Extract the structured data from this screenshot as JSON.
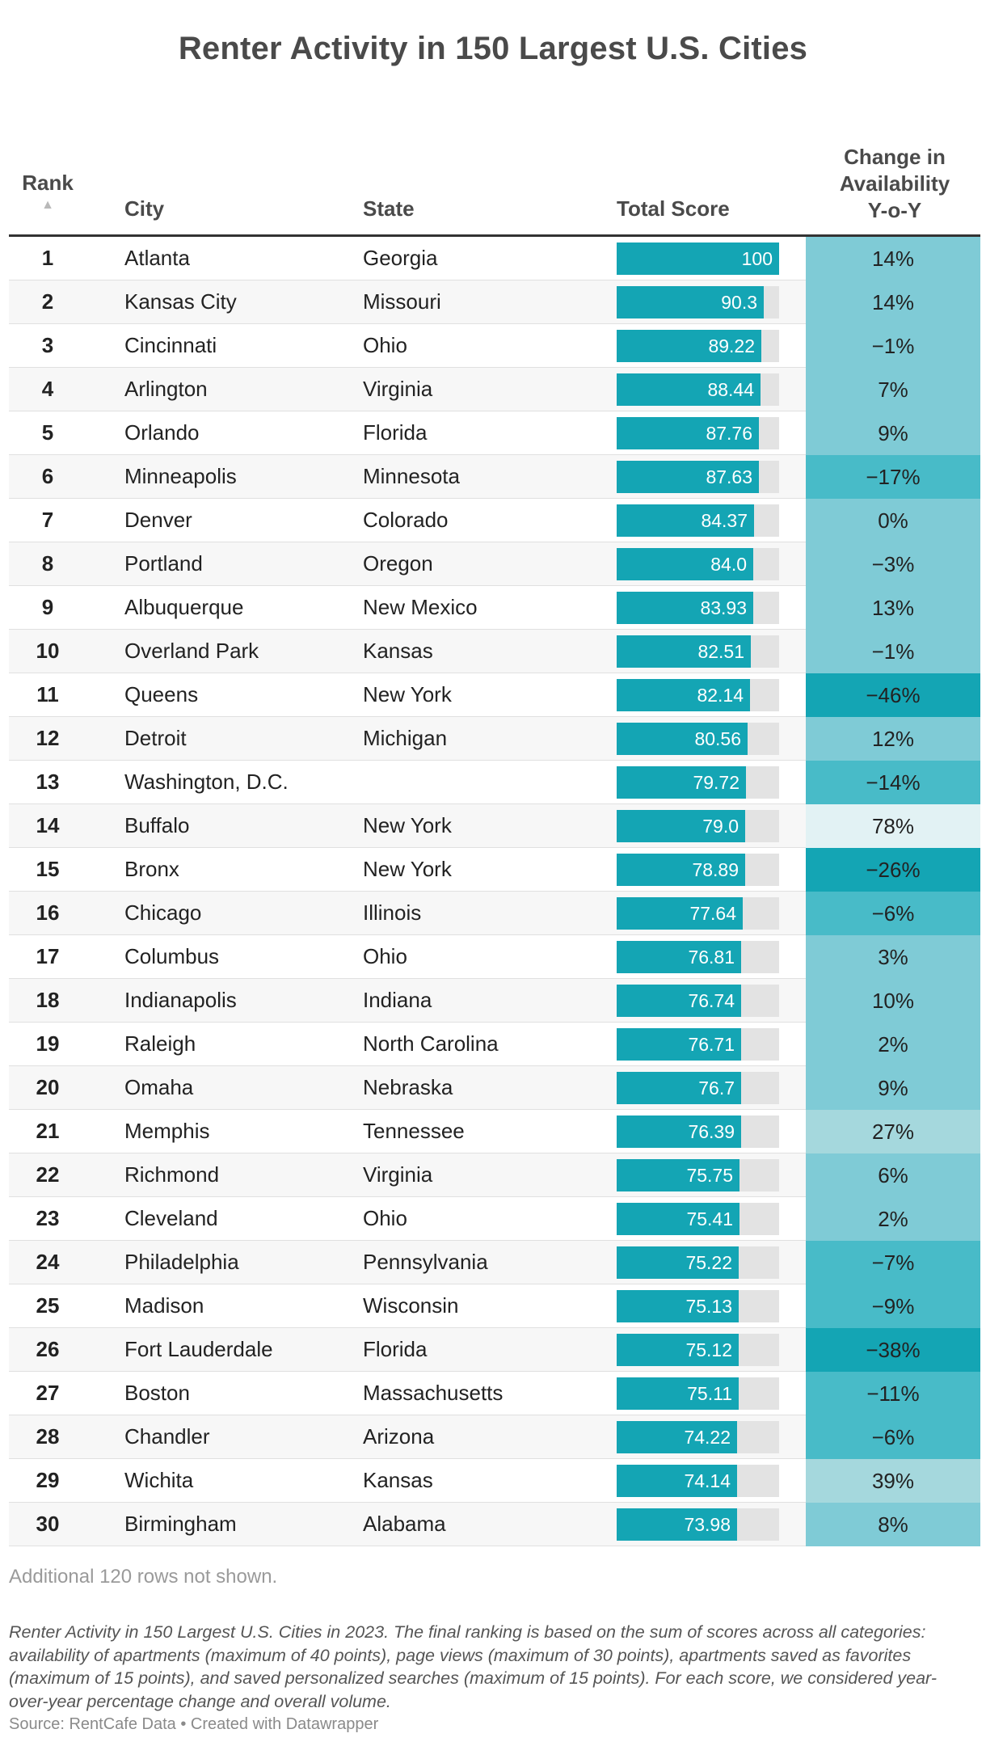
{
  "title": "Renter Activity in 150 Largest U.S. Cities",
  "headers": {
    "rank": "Rank",
    "sort_icon": "▲",
    "city": "City",
    "state": "State",
    "score": "Total Score",
    "change": "Change in\nAvailability\nY-o-Y"
  },
  "chart_data": {
    "type": "table",
    "title": "Renter Activity in 150 Largest U.S. Cities",
    "columns": [
      "Rank",
      "City",
      "State",
      "Total Score",
      "Change in Availability Y-o-Y"
    ],
    "score_range": [
      0,
      100
    ],
    "rows": [
      {
        "rank": "1",
        "city": "Atlanta",
        "state": "Georgia",
        "score": 100,
        "score_label": "100",
        "change": 14,
        "change_label": "14%"
      },
      {
        "rank": "2",
        "city": "Kansas City",
        "state": "Missouri",
        "score": 90.3,
        "score_label": "90.3",
        "change": 14,
        "change_label": "14%"
      },
      {
        "rank": "3",
        "city": "Cincinnati",
        "state": "Ohio",
        "score": 89.22,
        "score_label": "89.22",
        "change": -1,
        "change_label": "−1%"
      },
      {
        "rank": "4",
        "city": "Arlington",
        "state": "Virginia",
        "score": 88.44,
        "score_label": "88.44",
        "change": 7,
        "change_label": "7%"
      },
      {
        "rank": "5",
        "city": "Orlando",
        "state": "Florida",
        "score": 87.76,
        "score_label": "87.76",
        "change": 9,
        "change_label": "9%"
      },
      {
        "rank": "6",
        "city": "Minneapolis",
        "state": "Minnesota",
        "score": 87.63,
        "score_label": "87.63",
        "change": -17,
        "change_label": "−17%"
      },
      {
        "rank": "7",
        "city": "Denver",
        "state": "Colorado",
        "score": 84.37,
        "score_label": "84.37",
        "change": 0,
        "change_label": "0%"
      },
      {
        "rank": "8",
        "city": "Portland",
        "state": "Oregon",
        "score": 84.0,
        "score_label": "84.0",
        "change": -3,
        "change_label": "−3%"
      },
      {
        "rank": "9",
        "city": "Albuquerque",
        "state": "New Mexico",
        "score": 83.93,
        "score_label": "83.93",
        "change": 13,
        "change_label": "13%"
      },
      {
        "rank": "10",
        "city": "Overland Park",
        "state": "Kansas",
        "score": 82.51,
        "score_label": "82.51",
        "change": -1,
        "change_label": "−1%"
      },
      {
        "rank": "11",
        "city": "Queens",
        "state": "New York",
        "score": 82.14,
        "score_label": "82.14",
        "change": -46,
        "change_label": "−46%"
      },
      {
        "rank": "12",
        "city": "Detroit",
        "state": "Michigan",
        "score": 80.56,
        "score_label": "80.56",
        "change": 12,
        "change_label": "12%"
      },
      {
        "rank": "13",
        "city": "Washington, D.C.",
        "state": "",
        "score": 79.72,
        "score_label": "79.72",
        "change": -14,
        "change_label": "−14%"
      },
      {
        "rank": "14",
        "city": "Buffalo",
        "state": "New York",
        "score": 79.0,
        "score_label": "79.0",
        "change": 78,
        "change_label": "78%"
      },
      {
        "rank": "15",
        "city": "Bronx",
        "state": "New York",
        "score": 78.89,
        "score_label": "78.89",
        "change": -26,
        "change_label": "−26%"
      },
      {
        "rank": "16",
        "city": "Chicago",
        "state": "Illinois",
        "score": 77.64,
        "score_label": "77.64",
        "change": -6,
        "change_label": "−6%"
      },
      {
        "rank": "17",
        "city": "Columbus",
        "state": "Ohio",
        "score": 76.81,
        "score_label": "76.81",
        "change": 3,
        "change_label": "3%"
      },
      {
        "rank": "18",
        "city": "Indianapolis",
        "state": "Indiana",
        "score": 76.74,
        "score_label": "76.74",
        "change": 10,
        "change_label": "10%"
      },
      {
        "rank": "19",
        "city": "Raleigh",
        "state": "North Carolina",
        "score": 76.71,
        "score_label": "76.71",
        "change": 2,
        "change_label": "2%"
      },
      {
        "rank": "20",
        "city": "Omaha",
        "state": "Nebraska",
        "score": 76.7,
        "score_label": "76.7",
        "change": 9,
        "change_label": "9%"
      },
      {
        "rank": "21",
        "city": "Memphis",
        "state": "Tennessee",
        "score": 76.39,
        "score_label": "76.39",
        "change": 27,
        "change_label": "27%"
      },
      {
        "rank": "22",
        "city": "Richmond",
        "state": "Virginia",
        "score": 75.75,
        "score_label": "75.75",
        "change": 6,
        "change_label": "6%"
      },
      {
        "rank": "23",
        "city": "Cleveland",
        "state": "Ohio",
        "score": 75.41,
        "score_label": "75.41",
        "change": 2,
        "change_label": "2%"
      },
      {
        "rank": "24",
        "city": "Philadelphia",
        "state": "Pennsylvania",
        "score": 75.22,
        "score_label": "75.22",
        "change": -7,
        "change_label": "−7%"
      },
      {
        "rank": "25",
        "city": "Madison",
        "state": "Wisconsin",
        "score": 75.13,
        "score_label": "75.13",
        "change": -9,
        "change_label": "−9%"
      },
      {
        "rank": "26",
        "city": "Fort Lauderdale",
        "state": "Florida",
        "score": 75.12,
        "score_label": "75.12",
        "change": -38,
        "change_label": "−38%"
      },
      {
        "rank": "27",
        "city": "Boston",
        "state": "Massachusetts",
        "score": 75.11,
        "score_label": "75.11",
        "change": -11,
        "change_label": "−11%"
      },
      {
        "rank": "28",
        "city": "Chandler",
        "state": "Arizona",
        "score": 74.22,
        "score_label": "74.22",
        "change": -6,
        "change_label": "−6%"
      },
      {
        "rank": "29",
        "city": "Wichita",
        "state": "Kansas",
        "score": 74.14,
        "score_label": "74.14",
        "change": 39,
        "change_label": "39%"
      },
      {
        "rank": "30",
        "city": "Birmingham",
        "state": "Alabama",
        "score": 73.98,
        "score_label": "73.98",
        "change": 8,
        "change_label": "8%"
      }
    ]
  },
  "colors": {
    "bar": "#14a5b4",
    "bar_background": "#e3e3e3",
    "change_strong_negative": "#14a5b4",
    "change_negative": "#48bbc8",
    "change_neutral": "#7fcbd6",
    "change_positive": "#a5d8dd",
    "change_high_positive": "#e2f2f4"
  },
  "footer": {
    "rows_not_shown": "Additional 120 rows not shown.",
    "notes": "Renter Activity in 150 Largest U.S. Cities in 2023. The final ranking is based on the sum of scores across all categories: availability of apartments (maximum of 40 points), page views (maximum of 30 points), apartments saved as favorites (maximum of 15 points), and saved personalized searches (maximum of 15 points). For each score, we considered year-over-year percentage change and overall volume.",
    "source": "Source: RentCafe Data • Created with Datawrapper"
  }
}
